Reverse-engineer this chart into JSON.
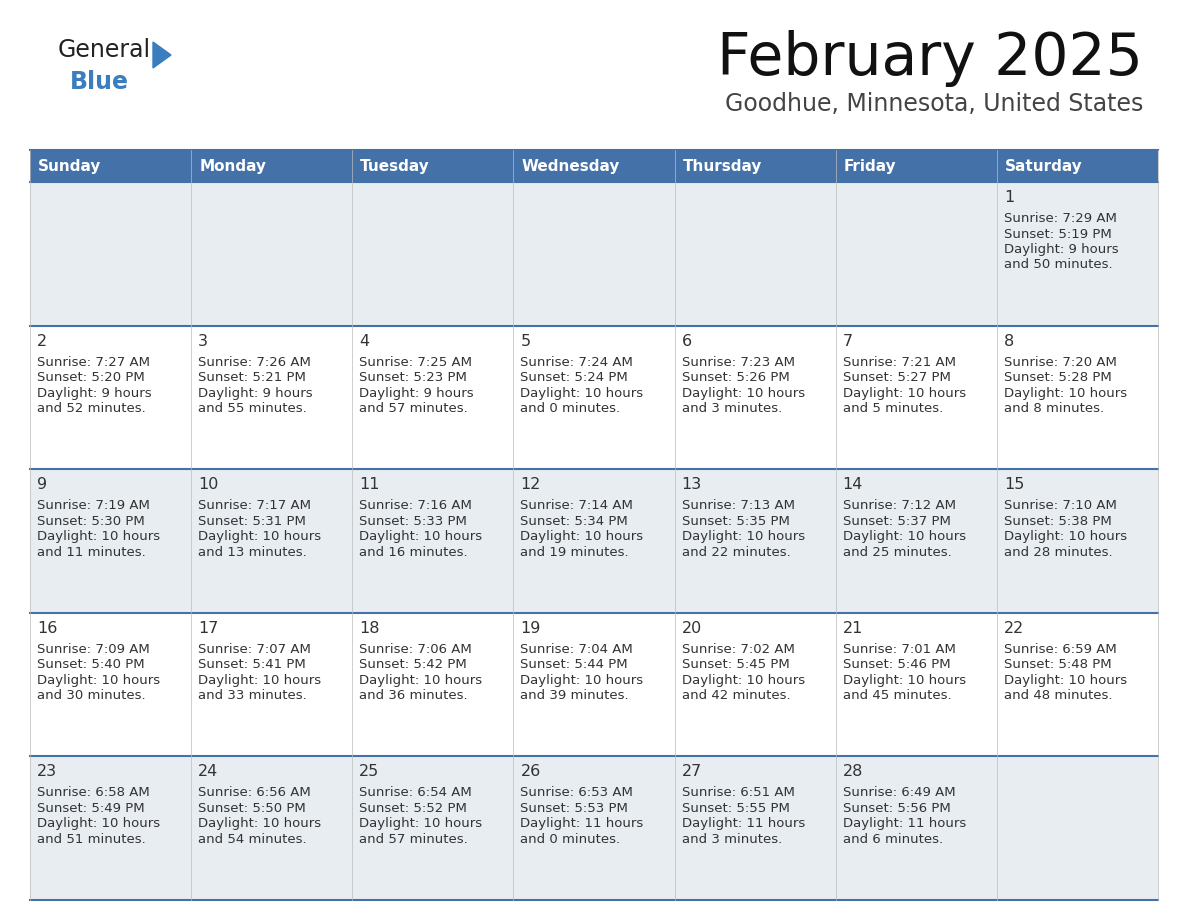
{
  "title": "February 2025",
  "subtitle": "Goodhue, Minnesota, United States",
  "header_bg": "#4472a8",
  "header_text": "#ffffff",
  "row_bg_odd": "#e8edf2",
  "row_bg_even": "#ffffff",
  "separator_color": "#4472a8",
  "day_headers": [
    "Sunday",
    "Monday",
    "Tuesday",
    "Wednesday",
    "Thursday",
    "Friday",
    "Saturday"
  ],
  "days": [
    {
      "day": 1,
      "col": 6,
      "row": 0,
      "sunrise": "7:29 AM",
      "sunset": "5:19 PM",
      "daylight_h": "9 hours",
      "daylight_m": "and 50 minutes."
    },
    {
      "day": 2,
      "col": 0,
      "row": 1,
      "sunrise": "7:27 AM",
      "sunset": "5:20 PM",
      "daylight_h": "9 hours",
      "daylight_m": "and 52 minutes."
    },
    {
      "day": 3,
      "col": 1,
      "row": 1,
      "sunrise": "7:26 AM",
      "sunset": "5:21 PM",
      "daylight_h": "9 hours",
      "daylight_m": "and 55 minutes."
    },
    {
      "day": 4,
      "col": 2,
      "row": 1,
      "sunrise": "7:25 AM",
      "sunset": "5:23 PM",
      "daylight_h": "9 hours",
      "daylight_m": "and 57 minutes."
    },
    {
      "day": 5,
      "col": 3,
      "row": 1,
      "sunrise": "7:24 AM",
      "sunset": "5:24 PM",
      "daylight_h": "10 hours",
      "daylight_m": "and 0 minutes."
    },
    {
      "day": 6,
      "col": 4,
      "row": 1,
      "sunrise": "7:23 AM",
      "sunset": "5:26 PM",
      "daylight_h": "10 hours",
      "daylight_m": "and 3 minutes."
    },
    {
      "day": 7,
      "col": 5,
      "row": 1,
      "sunrise": "7:21 AM",
      "sunset": "5:27 PM",
      "daylight_h": "10 hours",
      "daylight_m": "and 5 minutes."
    },
    {
      "day": 8,
      "col": 6,
      "row": 1,
      "sunrise": "7:20 AM",
      "sunset": "5:28 PM",
      "daylight_h": "10 hours",
      "daylight_m": "and 8 minutes."
    },
    {
      "day": 9,
      "col": 0,
      "row": 2,
      "sunrise": "7:19 AM",
      "sunset": "5:30 PM",
      "daylight_h": "10 hours",
      "daylight_m": "and 11 minutes."
    },
    {
      "day": 10,
      "col": 1,
      "row": 2,
      "sunrise": "7:17 AM",
      "sunset": "5:31 PM",
      "daylight_h": "10 hours",
      "daylight_m": "and 13 minutes."
    },
    {
      "day": 11,
      "col": 2,
      "row": 2,
      "sunrise": "7:16 AM",
      "sunset": "5:33 PM",
      "daylight_h": "10 hours",
      "daylight_m": "and 16 minutes."
    },
    {
      "day": 12,
      "col": 3,
      "row": 2,
      "sunrise": "7:14 AM",
      "sunset": "5:34 PM",
      "daylight_h": "10 hours",
      "daylight_m": "and 19 minutes."
    },
    {
      "day": 13,
      "col": 4,
      "row": 2,
      "sunrise": "7:13 AM",
      "sunset": "5:35 PM",
      "daylight_h": "10 hours",
      "daylight_m": "and 22 minutes."
    },
    {
      "day": 14,
      "col": 5,
      "row": 2,
      "sunrise": "7:12 AM",
      "sunset": "5:37 PM",
      "daylight_h": "10 hours",
      "daylight_m": "and 25 minutes."
    },
    {
      "day": 15,
      "col": 6,
      "row": 2,
      "sunrise": "7:10 AM",
      "sunset": "5:38 PM",
      "daylight_h": "10 hours",
      "daylight_m": "and 28 minutes."
    },
    {
      "day": 16,
      "col": 0,
      "row": 3,
      "sunrise": "7:09 AM",
      "sunset": "5:40 PM",
      "daylight_h": "10 hours",
      "daylight_m": "and 30 minutes."
    },
    {
      "day": 17,
      "col": 1,
      "row": 3,
      "sunrise": "7:07 AM",
      "sunset": "5:41 PM",
      "daylight_h": "10 hours",
      "daylight_m": "and 33 minutes."
    },
    {
      "day": 18,
      "col": 2,
      "row": 3,
      "sunrise": "7:06 AM",
      "sunset": "5:42 PM",
      "daylight_h": "10 hours",
      "daylight_m": "and 36 minutes."
    },
    {
      "day": 19,
      "col": 3,
      "row": 3,
      "sunrise": "7:04 AM",
      "sunset": "5:44 PM",
      "daylight_h": "10 hours",
      "daylight_m": "and 39 minutes."
    },
    {
      "day": 20,
      "col": 4,
      "row": 3,
      "sunrise": "7:02 AM",
      "sunset": "5:45 PM",
      "daylight_h": "10 hours",
      "daylight_m": "and 42 minutes."
    },
    {
      "day": 21,
      "col": 5,
      "row": 3,
      "sunrise": "7:01 AM",
      "sunset": "5:46 PM",
      "daylight_h": "10 hours",
      "daylight_m": "and 45 minutes."
    },
    {
      "day": 22,
      "col": 6,
      "row": 3,
      "sunrise": "6:59 AM",
      "sunset": "5:48 PM",
      "daylight_h": "10 hours",
      "daylight_m": "and 48 minutes."
    },
    {
      "day": 23,
      "col": 0,
      "row": 4,
      "sunrise": "6:58 AM",
      "sunset": "5:49 PM",
      "daylight_h": "10 hours",
      "daylight_m": "and 51 minutes."
    },
    {
      "day": 24,
      "col": 1,
      "row": 4,
      "sunrise": "6:56 AM",
      "sunset": "5:50 PM",
      "daylight_h": "10 hours",
      "daylight_m": "and 54 minutes."
    },
    {
      "day": 25,
      "col": 2,
      "row": 4,
      "sunrise": "6:54 AM",
      "sunset": "5:52 PM",
      "daylight_h": "10 hours",
      "daylight_m": "and 57 minutes."
    },
    {
      "day": 26,
      "col": 3,
      "row": 4,
      "sunrise": "6:53 AM",
      "sunset": "5:53 PM",
      "daylight_h": "11 hours",
      "daylight_m": "and 0 minutes."
    },
    {
      "day": 27,
      "col": 4,
      "row": 4,
      "sunrise": "6:51 AM",
      "sunset": "5:55 PM",
      "daylight_h": "11 hours",
      "daylight_m": "and 3 minutes."
    },
    {
      "day": 28,
      "col": 5,
      "row": 4,
      "sunrise": "6:49 AM",
      "sunset": "5:56 PM",
      "daylight_h": "11 hours",
      "daylight_m": "and 6 minutes."
    }
  ],
  "num_rows": 5,
  "num_cols": 7,
  "text_color": "#333333",
  "day_num_color": "#333333",
  "line_color": "#4472a8",
  "general_blue_color": "#3a7ebf",
  "logo_text_color": "#222222"
}
